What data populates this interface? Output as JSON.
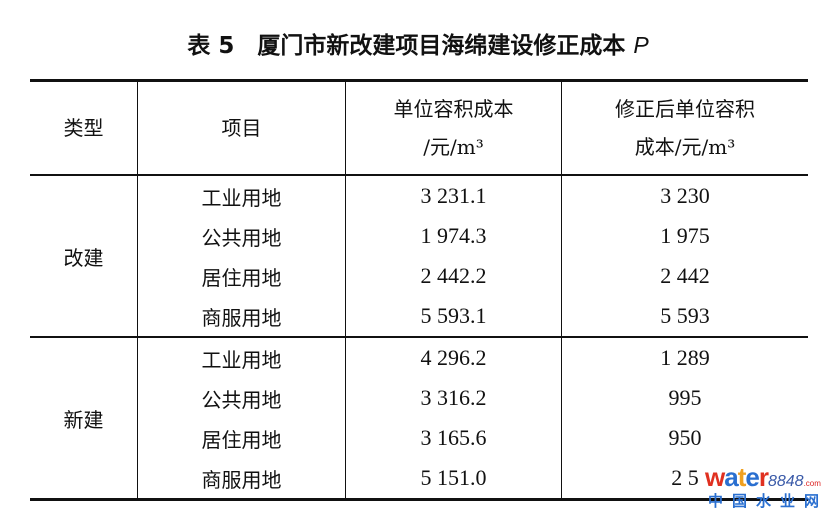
{
  "title": {
    "prefix": "表 5　厦门市新改建项目海绵建设修正成本 ",
    "var": "P"
  },
  "headers": {
    "type": "类型",
    "project": "项目",
    "cost_line1": "单位容积成本",
    "cost_line2": "/元/m³",
    "corr_line1": "修正后单位容积",
    "corr_line2": "成本/元/m³"
  },
  "groups": [
    {
      "type": "改建",
      "rows": [
        {
          "project": "工业用地",
          "cost": "3 231.1",
          "corrected": "3 230"
        },
        {
          "project": "公共用地",
          "cost": "1 974.3",
          "corrected": "1 975"
        },
        {
          "project": "居住用地",
          "cost": "2 442.2",
          "corrected": "2 442"
        },
        {
          "project": "商服用地",
          "cost": "5 593.1",
          "corrected": "5 593"
        }
      ]
    },
    {
      "type": "新建",
      "rows": [
        {
          "project": "工业用地",
          "cost": "4 296.2",
          "corrected": "1 289"
        },
        {
          "project": "公共用地",
          "cost": "3 316.2",
          "corrected": "995"
        },
        {
          "project": "居住用地",
          "cost": "3 165.6",
          "corrected": "950"
        },
        {
          "project": "商服用地",
          "cost": "5 151.0",
          "corrected": "2 5"
        }
      ]
    }
  ],
  "watermark": {
    "brand_a": "wate",
    "brand_b": "r",
    "brand_num": "8848",
    "brand_com": ".com",
    "cn": "中国水业网"
  },
  "colors": {
    "wm_w": "#e03020",
    "wm_a": "#2a6fd0",
    "wm_t": "#f0a020"
  }
}
